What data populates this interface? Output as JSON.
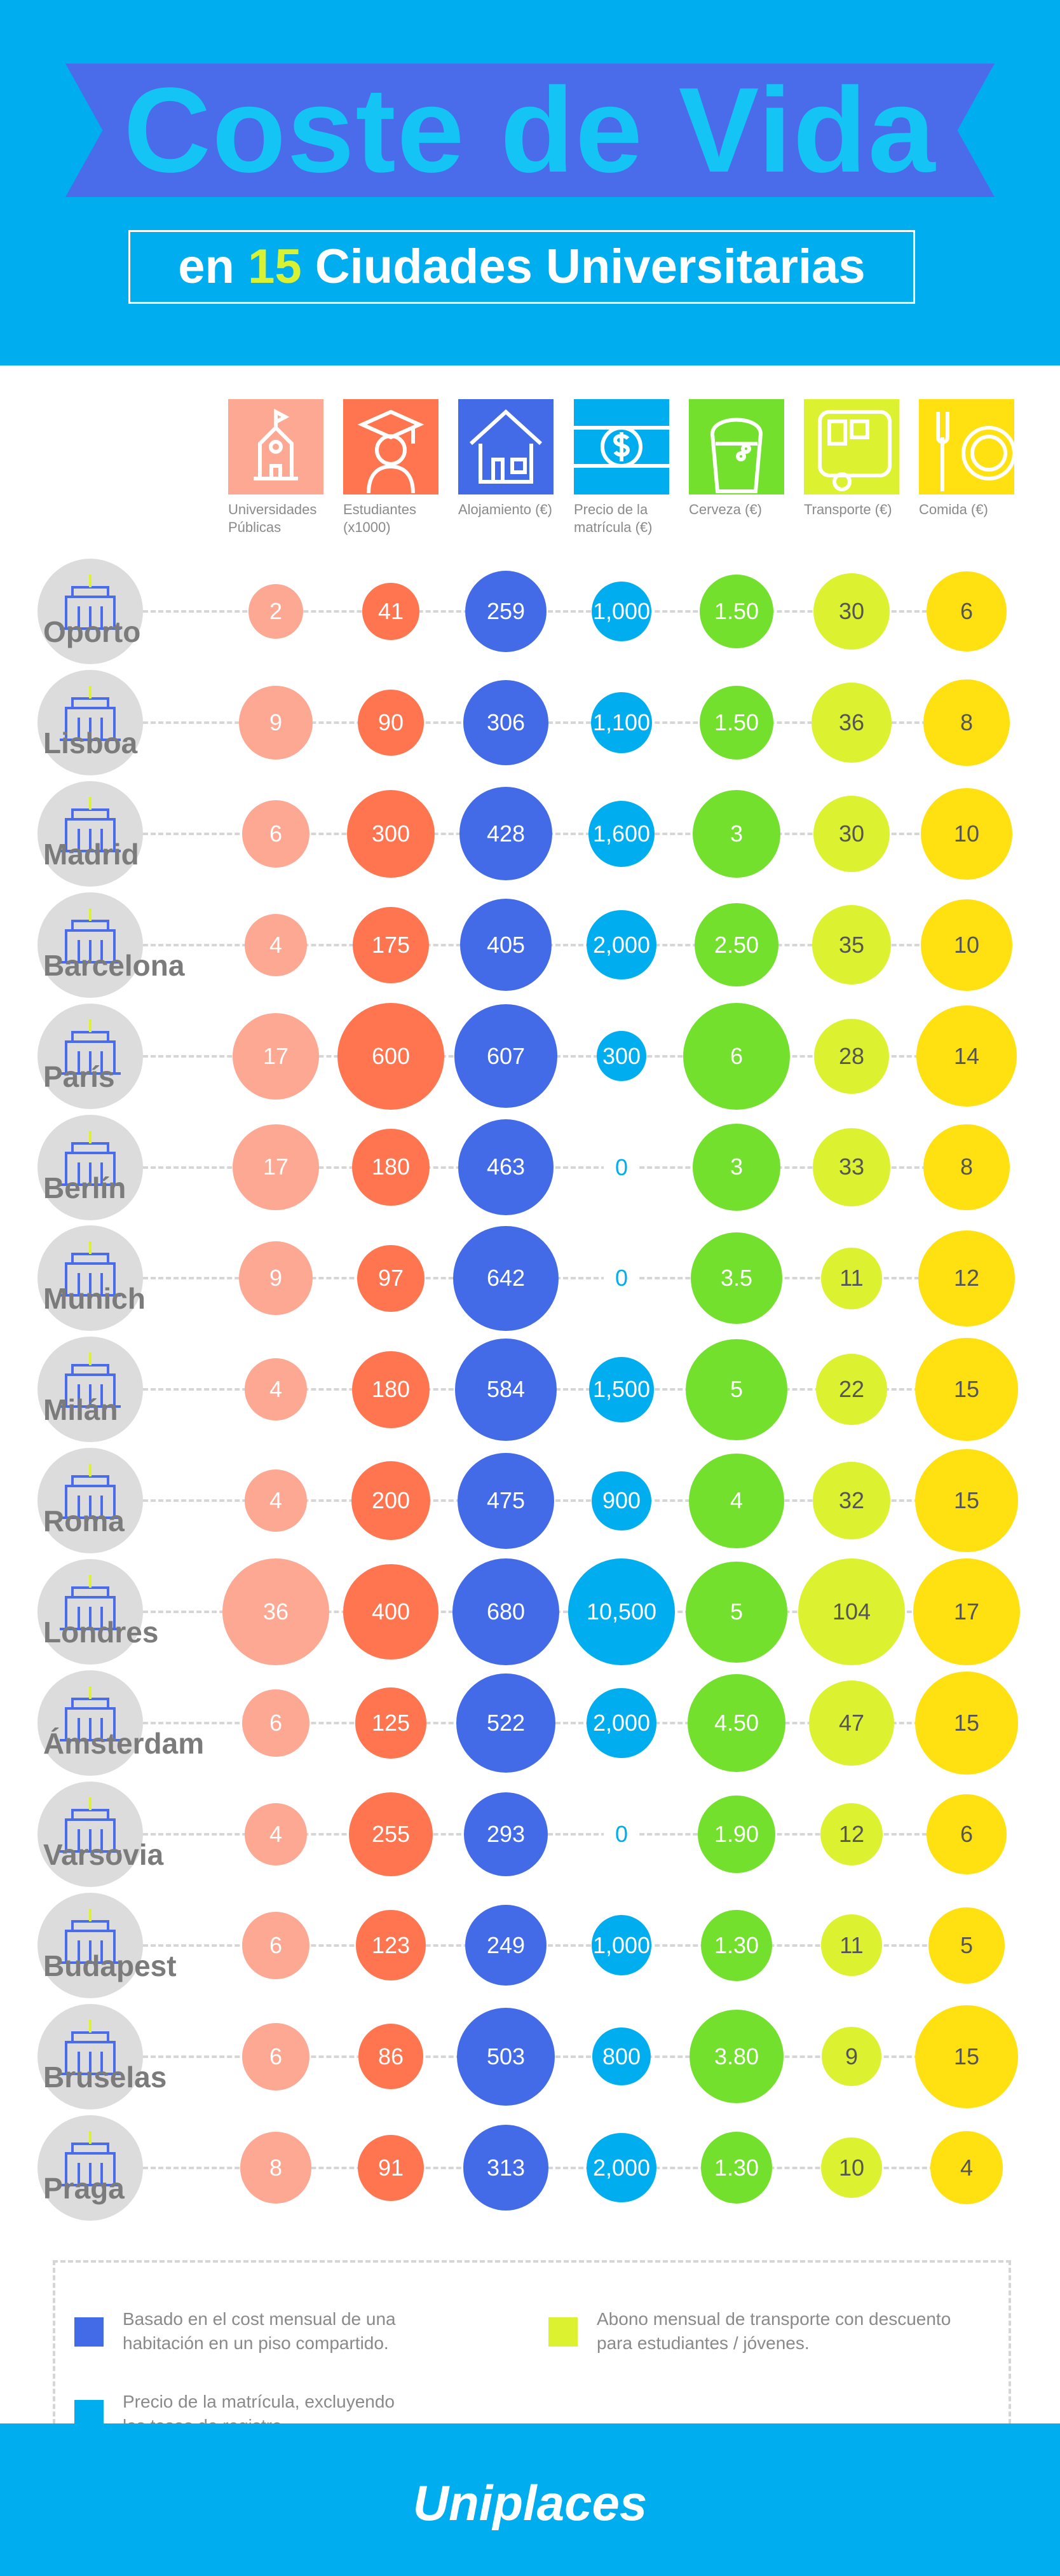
{
  "header": {
    "title": "Coste de Vida",
    "subtitle_pre": "en",
    "subtitle_num": "15",
    "subtitle_post": "Ciudades Universitarias"
  },
  "colors": {
    "header_bg": "#00adee",
    "ribbon": "#4a6cea",
    "title": "#14c4f5"
  },
  "chart_data": {
    "type": "table",
    "columns": [
      {
        "label": "Universidades Públicas",
        "icon": "university-icon",
        "color": "#fca892"
      },
      {
        "label": "Estudiantes (x1000)",
        "icon": "graduate-icon",
        "color": "#ff7550"
      },
      {
        "label": "Alojamiento (€)",
        "icon": "house-icon",
        "color": "#436be8"
      },
      {
        "label": "Precio de la matrícula (€)",
        "icon": "money-icon",
        "color": "#00aeef"
      },
      {
        "label": "Cerveza (€)",
        "icon": "beer-icon",
        "color": "#72e02d"
      },
      {
        "label": "Transporte (€)",
        "icon": "bus-icon",
        "color": "#dcf230"
      },
      {
        "label": "Comida (€)",
        "icon": "food-icon",
        "color": "#ffe010"
      }
    ],
    "rows": [
      {
        "city": "Oporto",
        "values": [
          "2",
          "41",
          "259",
          "1,000",
          "1.50",
          "30",
          "6"
        ]
      },
      {
        "city": "Lisboa",
        "values": [
          "9",
          "90",
          "306",
          "1,100",
          "1.50",
          "36",
          "8"
        ]
      },
      {
        "city": "Madrid",
        "values": [
          "6",
          "300",
          "428",
          "1,600",
          "3",
          "30",
          "10"
        ]
      },
      {
        "city": "Barcelona",
        "values": [
          "4",
          "175",
          "405",
          "2,000",
          "2.50",
          "35",
          "10"
        ]
      },
      {
        "city": "París",
        "values": [
          "17",
          "600",
          "607",
          "300",
          "6",
          "28",
          "14"
        ]
      },
      {
        "city": "Berlín",
        "values": [
          "17",
          "180",
          "463",
          "0",
          "3",
          "33",
          "8"
        ]
      },
      {
        "city": "Munich",
        "values": [
          "9",
          "97",
          "642",
          "0",
          "3.5",
          "11",
          "12"
        ]
      },
      {
        "city": "Milán",
        "values": [
          "4",
          "180",
          "584",
          "1,500",
          "5",
          "22",
          "15"
        ]
      },
      {
        "city": "Roma",
        "values": [
          "4",
          "200",
          "475",
          "900",
          "4",
          "32",
          "15"
        ]
      },
      {
        "city": "Londres",
        "values": [
          "36",
          "400",
          "680",
          "10,500",
          "5",
          "104",
          "17"
        ]
      },
      {
        "city": "Ámsterdam",
        "values": [
          "6",
          "125",
          "522",
          "2,000",
          "4.50",
          "47",
          "15"
        ]
      },
      {
        "city": "Varsovia",
        "values": [
          "4",
          "255",
          "293",
          "0",
          "1.90",
          "12",
          "6"
        ]
      },
      {
        "city": "Budapest",
        "values": [
          "6",
          "123",
          "249",
          "1,000",
          "1.30",
          "11",
          "5"
        ]
      },
      {
        "city": "Bruselas",
        "values": [
          "6",
          "86",
          "503",
          "800",
          "3.80",
          "9",
          "15"
        ]
      },
      {
        "city": "Praga",
        "values": [
          "8",
          "91",
          "313",
          "2,000",
          "1.30",
          "10",
          "4"
        ]
      }
    ]
  },
  "legend": [
    {
      "text": "Basado en el cost mensual de una habitación en un piso compartido.",
      "color": "#436be8"
    },
    {
      "text": "Abono mensual de transporte con descuento para estudiantes / jóvenes.",
      "color": "#dcf230"
    },
    {
      "text": "Precio de la matrícula, excluyendo las tasas de registro.",
      "color": "#00aeef"
    }
  ],
  "footer": {
    "brand": "Uniplaces"
  }
}
